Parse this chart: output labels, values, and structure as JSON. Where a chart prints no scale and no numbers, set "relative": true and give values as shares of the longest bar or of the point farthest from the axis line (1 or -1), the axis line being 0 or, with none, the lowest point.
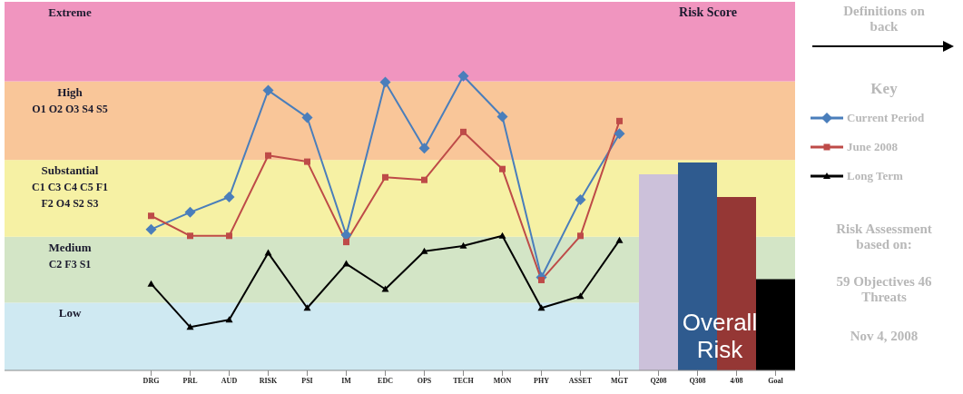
{
  "chart_data": {
    "type": "bar",
    "relative": true,
    "categories": [
      "DRG",
      "PRL",
      "AUD",
      "RISK",
      "PSI",
      "IM",
      "EDC",
      "OPS",
      "TECH",
      "MON",
      "PHY",
      "ASSET",
      "MGT",
      "Q208",
      "Q308",
      "4/08",
      "Goal"
    ],
    "series": [
      {
        "name": "Current Period",
        "type": "line",
        "color": "#4a7ebb",
        "marker": "diamond",
        "values": [
          0.479,
          0.537,
          0.589,
          0.951,
          0.859,
          0.46,
          0.979,
          0.755,
          1,
          0.862,
          0.316,
          0.58,
          0.804,
          null,
          null,
          null,
          null
        ]
      },
      {
        "name": "June 2008",
        "type": "line",
        "color": "#be4b48",
        "marker": "square",
        "values": [
          0.525,
          0.457,
          0.457,
          0.73,
          0.709,
          0.436,
          0.656,
          0.647,
          0.81,
          0.684,
          0.307,
          0.457,
          0.847,
          null,
          null,
          null,
          null
        ]
      },
      {
        "name": "Long Term",
        "type": "line",
        "color": "#000000",
        "marker": "triangle",
        "values": [
          0.294,
          0.147,
          0.172,
          0.399,
          0.212,
          0.362,
          0.276,
          0.405,
          0.423,
          0.457,
          0.212,
          0.252,
          0.442,
          null,
          null,
          null,
          null
        ]
      },
      {
        "colors": [
          null,
          null,
          null,
          null,
          null,
          null,
          null,
          null,
          null,
          null,
          null,
          null,
          null,
          "#ccc1da",
          "#2f5b8f",
          "#953735",
          "#000000"
        ],
        "values": [
          null,
          null,
          null,
          null,
          null,
          null,
          null,
          null,
          null,
          null,
          null,
          null,
          null,
          0.666,
          0.706,
          0.589,
          0.31
        ]
      }
    ],
    "bands": [
      {
        "axis": "y",
        "from": 0,
        "to": 0.23,
        "label": "Low",
        "color": "#cfe9f2"
      },
      {
        "axis": "y",
        "from": 0.23,
        "to": 0.454,
        "label": "Medium\nC2 F3 S1",
        "color": "#d3e5c6"
      },
      {
        "axis": "y",
        "from": 0.454,
        "to": 0.715,
        "label": "Substantial\nC1 C3 C4 C5 F1\nF2 O4 S2 S3",
        "color": "#f6f1a4"
      },
      {
        "axis": "y",
        "from": 0.715,
        "to": 0.982,
        "label": "High\nO1 O2 O3 S4 S5",
        "color": "#f9c699"
      },
      {
        "axis": "y",
        "from": 0.982,
        "to": 1.252,
        "label": "Extreme",
        "color": "#f095bf"
      }
    ],
    "legend": "right",
    "legend_title": "Key",
    "annotations": [
      "Risk Score",
      "Overall Risk",
      "Definitions on back",
      "Risk Assessment based on:",
      "59 Objectives 46 Threats",
      "Nov 4, 2008"
    ]
  }
}
